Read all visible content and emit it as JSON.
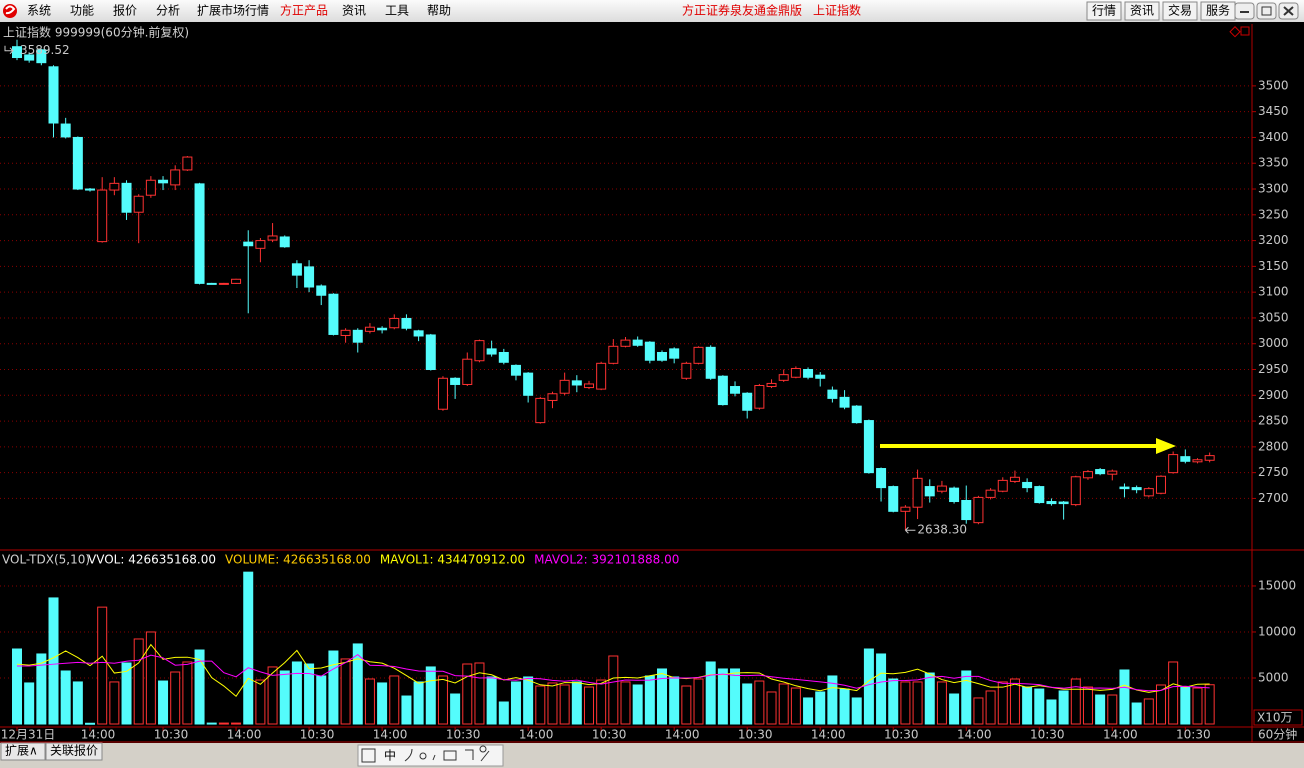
{
  "app": {
    "menu": [
      "系统",
      "功能",
      "报价",
      "分析",
      "扩展市场行情",
      "方正产品",
      "资讯",
      "工具",
      "帮助"
    ],
    "title": "方正证券泉友通金鼎版",
    "instrument": "上证指数",
    "buttons": [
      "行情",
      "资讯",
      "交易",
      "服务"
    ],
    "tabs": [
      "扩展∧",
      "关联报价"
    ],
    "toolbar_label": "中"
  },
  "chart_data": [
    {
      "type": "candlestick",
      "title": "上证指数 999999(60分钟.前复权)",
      "open": [
        3576,
        3560,
        3570,
        3537,
        3426,
        3400,
        3300,
        3198,
        3298,
        3311,
        3255,
        3288,
        3317,
        3308,
        3337,
        3310,
        3117,
        3116,
        3117,
        3197,
        3185,
        3201,
        3207,
        3155,
        3149,
        3112,
        3096,
        3016,
        3026,
        3024,
        3030,
        3031,
        3049,
        3025,
        3017,
        2873,
        2933,
        2921,
        2967,
        2990,
        2983,
        2958,
        2943,
        2847,
        2890,
        2904,
        2928,
        2915,
        2912,
        2962,
        2995,
        3007,
        3003,
        2983,
        2990,
        2933,
        2962,
        2993,
        2937,
        2917,
        2904,
        2875,
        2917,
        2929,
        2935,
        2950,
        2939,
        2910,
        2896,
        2879,
        2851,
        2758,
        2723,
        2675,
        2683,
        2723,
        2714,
        2720,
        2696,
        2653,
        2702,
        2714,
        2733,
        2731,
        2723,
        2694,
        2693,
        2688,
        2740,
        2756,
        2747,
        2722,
        2721,
        2705,
        2710,
        2750,
        2781,
        2771,
        2774
      ],
      "high": [
        3589.52,
        3565,
        3572,
        3540,
        3438,
        3402,
        3302,
        3323,
        3323,
        3317,
        3290,
        3325,
        3325,
        3346,
        3364,
        3312,
        3118,
        3118,
        3126,
        3220,
        3205,
        3234,
        3210,
        3162,
        3162,
        3115,
        3098,
        3030,
        3030,
        3040,
        3034,
        3057,
        3057,
        3027,
        3019,
        2937,
        2935,
        2983,
        3008,
        3006,
        2990,
        2960,
        2945,
        2897,
        2907,
        2944,
        2939,
        2928,
        2965,
        3009,
        3013,
        3014,
        3005,
        2987,
        2993,
        2965,
        2995,
        2997,
        2939,
        2927,
        2906,
        2922,
        2931,
        2950,
        2956,
        2954,
        2945,
        2917,
        2910,
        2881,
        2853,
        2760,
        2725,
        2687,
        2756,
        2737,
        2734,
        2723,
        2725,
        2705,
        2720,
        2741,
        2754,
        2739,
        2725,
        2700,
        2695,
        2744,
        2755,
        2759,
        2756,
        2729,
        2725,
        2722,
        2745,
        2791,
        2795,
        2778,
        2789
      ],
      "low": [
        3550,
        3545,
        3540,
        3400,
        3398,
        3298,
        3295,
        3196,
        3288,
        3240,
        3195,
        3283,
        3298,
        3298,
        3335,
        3115,
        3115,
        3115,
        3116,
        3059,
        3158,
        3197,
        3186,
        3108,
        3100,
        3075,
        3016,
        3002,
        2983,
        3020,
        3020,
        3028,
        3026,
        3005,
        2948,
        2870,
        2893,
        2918,
        2964,
        2975,
        2960,
        2929,
        2886,
        2845,
        2875,
        2900,
        2906,
        2912,
        2910,
        2960,
        2993,
        2994,
        2962,
        2965,
        2962,
        2930,
        2960,
        2930,
        2880,
        2898,
        2855,
        2872,
        2914,
        2926,
        2933,
        2931,
        2917,
        2886,
        2873,
        2845,
        2748,
        2694,
        2673,
        2638.3,
        2660,
        2692,
        2710,
        2690,
        2651,
        2650,
        2698,
        2712,
        2730,
        2712,
        2690,
        2686,
        2659,
        2685,
        2736,
        2745,
        2735,
        2702,
        2710,
        2702,
        2708,
        2748,
        2768,
        2768,
        2770
      ],
      "close": [
        3555,
        3550,
        3545,
        3428,
        3401,
        3300,
        3298,
        3298,
        3311,
        3255,
        3286,
        3317,
        3312,
        3337,
        3362,
        3117,
        3116,
        3117,
        3125,
        3190,
        3200,
        3209,
        3188,
        3133,
        3110,
        3094,
        3018,
        3026,
        3003,
        3032,
        3027,
        3049,
        3030,
        3015,
        2950,
        2933,
        2921,
        2970,
        3006,
        2980,
        2964,
        2939,
        2900,
        2894,
        2903,
        2929,
        2920,
        2922,
        2962,
        2995,
        3007,
        2997,
        2968,
        2968,
        2972,
        2962,
        2993,
        2933,
        2882,
        2904,
        2871,
        2919,
        2923,
        2940,
        2952,
        2935,
        2933,
        2894,
        2877,
        2847,
        2750,
        2721,
        2675,
        2683,
        2739,
        2705,
        2724,
        2694,
        2659,
        2702,
        2716,
        2735,
        2741,
        2721,
        2692,
        2690,
        2690,
        2742,
        2752,
        2748,
        2753,
        2719,
        2717,
        2719,
        2743,
        2785,
        2772,
        2775,
        2783
      ],
      "high_label": "3589.52",
      "low_label": "2638.30",
      "up_color": "#ff3232",
      "down_color": "#54fcfc",
      "grid": true,
      "ylim": [
        2600,
        3620
      ],
      "yticks": [
        2700,
        2750,
        2800,
        2850,
        2900,
        2950,
        3000,
        3050,
        3100,
        3150,
        3200,
        3250,
        3300,
        3350,
        3400,
        3450,
        3500
      ]
    },
    {
      "type": "volume",
      "title": "VOL-TDX(5,10)",
      "readouts": [
        {
          "text": "VVOL: 426635168.00",
          "color": "#ffffff"
        },
        {
          "text": "VOLUME: 426635168.00",
          "color": "#ffcc00"
        },
        {
          "text": "MAVOL1: 434470912.00",
          "color": "#ffff00"
        },
        {
          "text": "MAVOL2: 392101888.00",
          "color": "#ff00ff"
        }
      ],
      "categories": [
        "12月31日",
        null,
        null,
        null,
        null,
        null,
        "14:00",
        null,
        null,
        null,
        null,
        null,
        "10:30",
        null,
        null,
        null,
        null,
        null,
        "14:00",
        null,
        null,
        null,
        null,
        null,
        "10:30",
        null,
        null,
        null,
        null,
        null,
        "14:00",
        null,
        null,
        null,
        null,
        null,
        "10:30",
        null,
        null,
        null,
        null,
        null,
        "14:00",
        null,
        null,
        null,
        null,
        null,
        "10:30",
        null,
        null,
        null,
        null,
        null,
        "14:00",
        null,
        null,
        null,
        null,
        null,
        "10:30",
        null,
        null,
        null,
        null,
        null,
        "14:00",
        null,
        null,
        null,
        null,
        null,
        "10:30",
        null,
        null,
        null,
        null,
        null,
        "14:00",
        null,
        null,
        null,
        null,
        null,
        "10:30",
        null,
        null,
        null,
        null,
        null,
        "14:00",
        null,
        null,
        null,
        null,
        null,
        "10:30",
        null,
        null
      ],
      "values": [
        8150,
        4460,
        7610,
        13700,
        5760,
        4570,
        80,
        12700,
        4570,
        6630,
        9240,
        10000,
        4670,
        5650,
        6740,
        8040,
        100,
        100,
        100,
        16500,
        4780,
        6200,
        5760,
        6740,
        6520,
        5220,
        7930,
        7070,
        8700,
        4890,
        4460,
        5220,
        3040,
        4570,
        6200,
        5220,
        3260,
        6520,
        6630,
        5110,
        2390,
        4570,
        5110,
        4130,
        4460,
        4240,
        4570,
        4020,
        4780,
        7390,
        4570,
        4240,
        5220,
        5980,
        5110,
        4130,
        4890,
        6740,
        5980,
        5980,
        4350,
        4670,
        3480,
        4350,
        3910,
        2830,
        3480,
        5220,
        3800,
        2830,
        8150,
        7610,
        4890,
        4570,
        4570,
        5540,
        4570,
        3260,
        5760,
        2830,
        3590,
        4570,
        4890,
        4020,
        3800,
        2610,
        3590,
        4890,
        4020,
        3150,
        3150,
        5870,
        2280,
        2720,
        4240,
        6740,
        4020,
        3910,
        4266
      ],
      "series": [
        {
          "color": "#ffff00",
          "values": [
            6500,
            6400,
            6600,
            7200,
            7936,
            7220,
            6344,
            7362,
            5536,
            5710,
            6644,
            8628,
            7022,
            7238,
            7260,
            7020,
            5040,
            4126,
            3016,
            4968,
            4316,
            5536,
            6668,
            7996,
            6000,
            6088,
            6434,
            6696,
            7088,
            6762,
            6610,
            6068,
            5262,
            4436,
            4698,
            4850,
            4458,
            5154,
            5566,
            5348,
            4782,
            5044,
            4762,
            4262,
            4132,
            4502,
            4502,
            4284,
            4414,
            5000,
            5066,
            5000,
            5240,
            5480,
            5024,
            4936,
            5066,
            5370,
            5370,
            5544,
            5588,
            5544,
            4892,
            4566,
            4152,
            3848,
            3610,
            3958,
            3848,
            3632,
            4696,
            5522,
            5456,
            5610,
            5958,
            5436,
            4828,
            4502,
            4740,
            4392,
            4002,
            4002,
            4328,
            3980,
            4174,
            3978,
            3782,
            3782,
            3782,
            3652,
            3760,
            4216,
            3694,
            3434,
            3652,
            4370,
            4000,
            4326,
            4345
          ]
        },
        {
          "color": "#ff00ff",
          "values": [
            6300,
            6300,
            6400,
            6500,
            6600,
            6700,
            6600,
            6700,
            6600,
            6823,
            6932,
            7486,
            7192,
            6387,
            6485,
            6832,
            6834,
            5574,
            5127,
            6114,
            5668,
            5288,
            5397,
            5506,
            5484,
            5202,
            5985,
            6682,
            7542,
            6381,
            6349,
            6251,
            5979,
            5762,
            5730,
            5730,
            5263,
            5208,
            5001,
            5023,
            4816,
            4751,
            4958,
            4914,
            4740,
            4642,
            4773,
            4523,
            4338,
            4566,
            4784,
            4751,
            4762,
            4947,
            5012,
            5001,
            5033,
            5305,
            5425,
            5284,
            5262,
            5305,
            5131,
            4968,
            4848,
            4718,
            4577,
            4425,
            4207,
            3892,
            4272,
            4566,
            4707,
            4729,
            4795,
            5066,
            5175,
            4979,
            5175,
            5175,
            4719,
            4415,
            4415,
            4360,
            4283,
            3990,
            3892,
            4055,
            3881,
            3913,
            3869,
            3999,
            3738,
            3608,
            3652,
            4065,
            4108,
            4010,
            3921
          ]
        }
      ],
      "ylim": [
        0,
        18800
      ],
      "yticks": [
        5000,
        10000,
        15000
      ],
      "unit": "X10万",
      "period": "60分钟"
    }
  ]
}
